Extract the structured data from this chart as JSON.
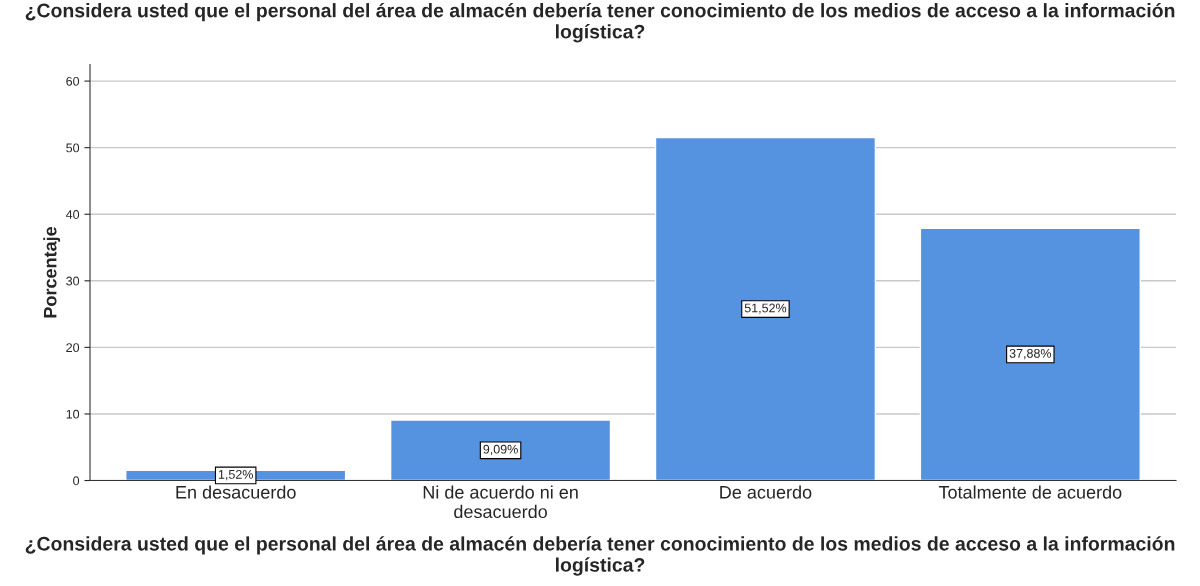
{
  "chart_data": {
    "type": "bar",
    "title": "¿Considera usted que el personal del área de almacén debería tener conocimiento de los medios de acceso a la información logística?",
    "xlabel": "¿Considera usted que el personal del área de almacén debería tener conocimiento de los medios de acceso a la información logística?",
    "ylabel": "Porcentaje",
    "categories": [
      "En desacuerdo",
      "Ni de acuerdo ni en\ndesacuerdo",
      "De acuerdo",
      "Totalmente de acuerdo"
    ],
    "values": [
      1.52,
      9.09,
      51.52,
      37.88
    ],
    "value_labels": [
      "1,52%",
      "9,09%",
      "51,52%",
      "37,88%"
    ],
    "color": "#5592e0",
    "ylim": [
      0,
      62.5
    ],
    "yticks": [
      0,
      10,
      20,
      30,
      40,
      50,
      60
    ],
    "grid": "y"
  }
}
